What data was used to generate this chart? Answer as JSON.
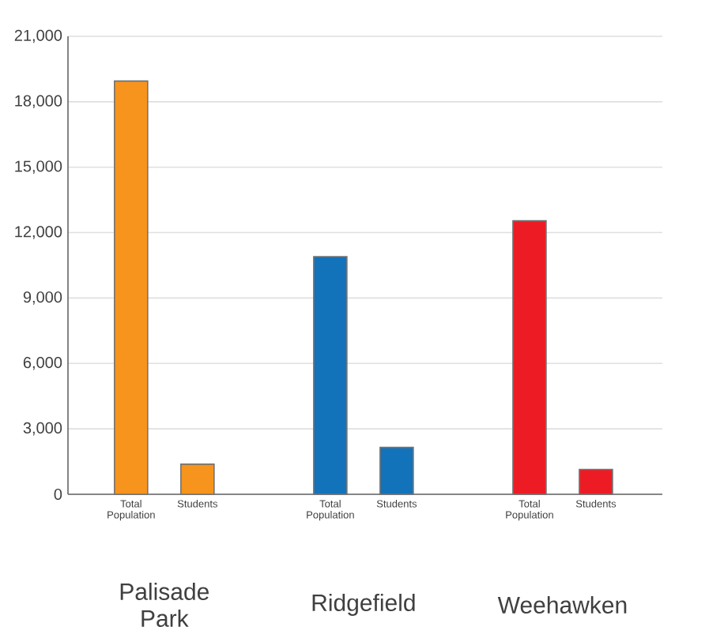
{
  "chart_data": {
    "type": "bar",
    "categories": [
      "Total Population",
      "Students",
      null,
      "Total Population",
      "Students",
      null,
      "Total Population",
      "Students"
    ],
    "values": [
      18950,
      1380,
      null,
      10900,
      2150,
      null,
      12540,
      1140
    ],
    "colors": [
      "#f7941d",
      "#f7941d",
      null,
      "#1273bb",
      "#1273bb",
      null,
      "#ed1c24",
      "#ed1c24"
    ],
    "ylim": [
      0,
      21000
    ],
    "yticks": [
      0,
      {
        "value": 3000,
        "label": "3,000"
      },
      {
        "value": 6000,
        "label": "6,000"
      },
      {
        "value": 9000,
        "label": "9,000"
      },
      {
        "value": 12000,
        "label": "12,000"
      },
      {
        "value": 15000,
        "label": "15,000"
      },
      {
        "value": 18000,
        "label": "18,000"
      },
      {
        "value": 21000,
        "label": "21,000"
      }
    ],
    "grid": "y",
    "annotations": [
      "Palisade Park",
      "Ridgefield",
      "Weehawken"
    ]
  }
}
